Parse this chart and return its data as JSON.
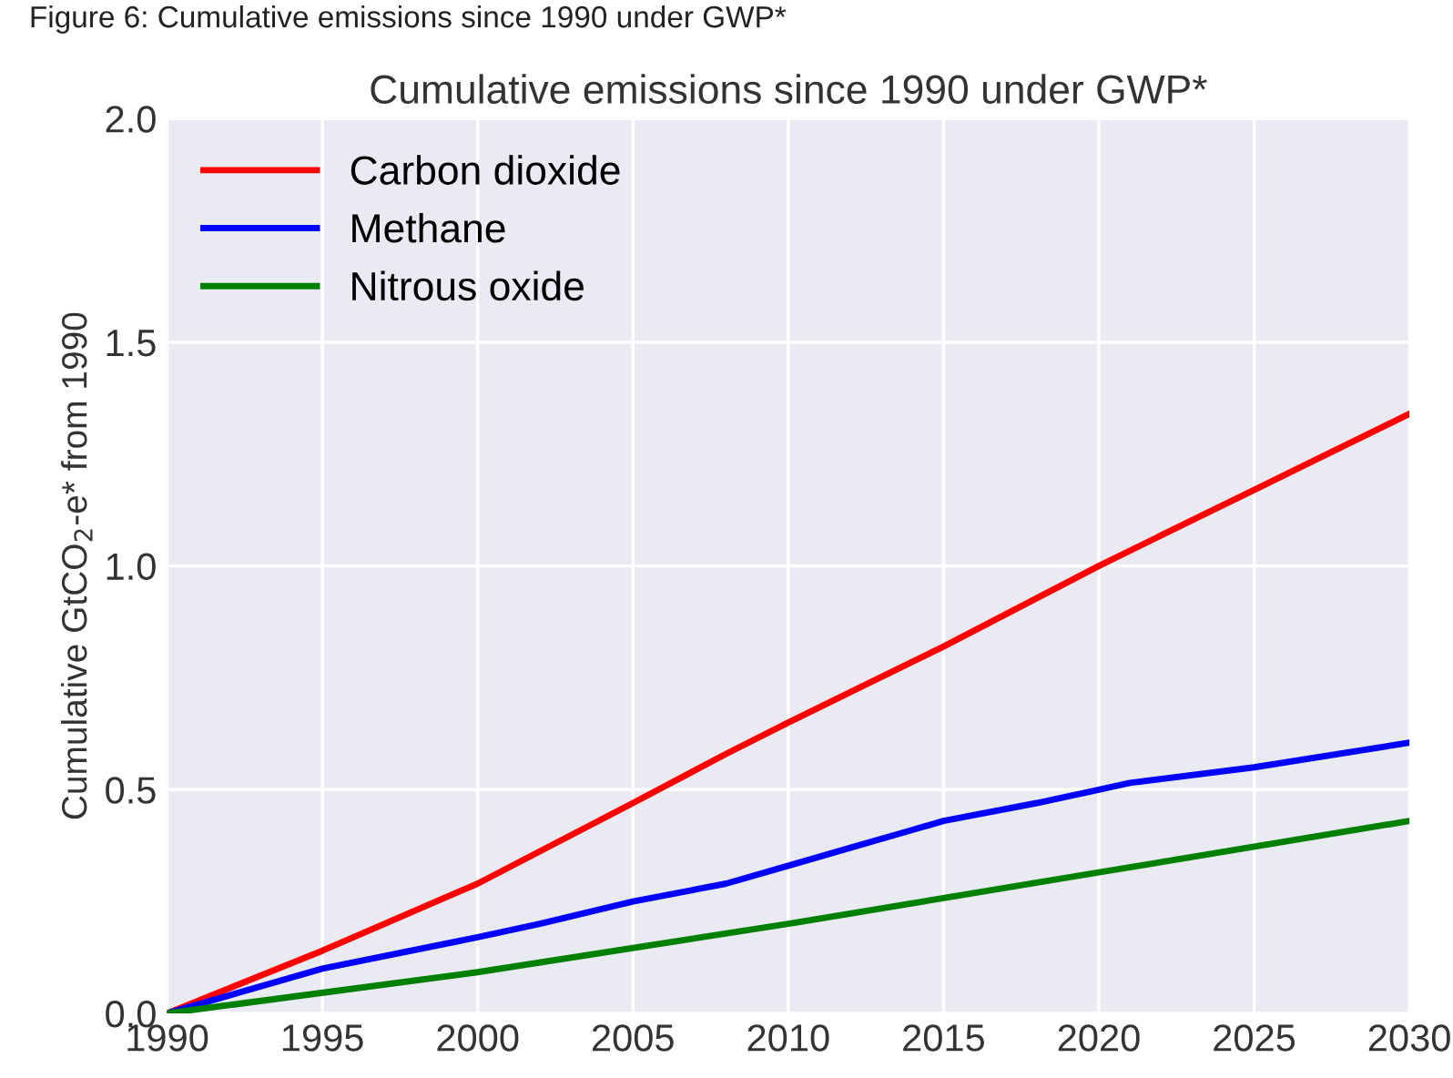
{
  "chart_data": {
    "type": "line",
    "title": "Cumulative emissions since 1990 under GWP*",
    "annotations": [
      "Figure 6: Cumulative emissions since 1990 under GWP*"
    ],
    "ylabel": "Cumulative GtCO$_{2}$-e* from 1990",
    "xlim": [
      1990,
      2030
    ],
    "xticks": [
      1990,
      1995,
      2000,
      2005,
      2010,
      2015,
      2020,
      2025,
      2030
    ],
    "ylim": [
      0,
      2.0
    ],
    "yticks": [
      {
        "value": 0,
        "label": "0.0"
      },
      {
        "value": 0.5,
        "label": "0.5"
      },
      {
        "value": 1.0,
        "label": "1.0"
      },
      {
        "value": 1.5,
        "label": "1.5"
      },
      {
        "value": 2.0,
        "label": "2.0"
      }
    ],
    "grid": true,
    "legend": "top left",
    "series": [
      {
        "name": "Carbon dioxide",
        "color": "#ff0000",
        "x": [
          1990,
          1995,
          2000,
          2005,
          2008,
          2010,
          2015,
          2020,
          2025,
          2030
        ],
        "values": [
          0,
          0.14,
          0.29,
          0.47,
          0.58,
          0.65,
          0.82,
          1.0,
          1.17,
          1.34
        ]
      },
      {
        "name": "Methane",
        "color": "#0000ff",
        "x": [
          1990,
          1995,
          2000,
          2002,
          2005,
          2008,
          2010,
          2012,
          2014,
          2015,
          2018,
          2020,
          2021,
          2025,
          2030
        ],
        "values": [
          0,
          0.1,
          0.17,
          0.2,
          0.25,
          0.29,
          0.33,
          0.37,
          0.41,
          0.43,
          0.47,
          0.5,
          0.515,
          0.55,
          0.605
        ]
      },
      {
        "name": "Nitrous oxide",
        "color": "#008000",
        "x": [
          1990,
          2000,
          2010,
          2020,
          2030
        ],
        "values": [
          0,
          0.092,
          0.2,
          0.315,
          0.43
        ]
      }
    ]
  }
}
